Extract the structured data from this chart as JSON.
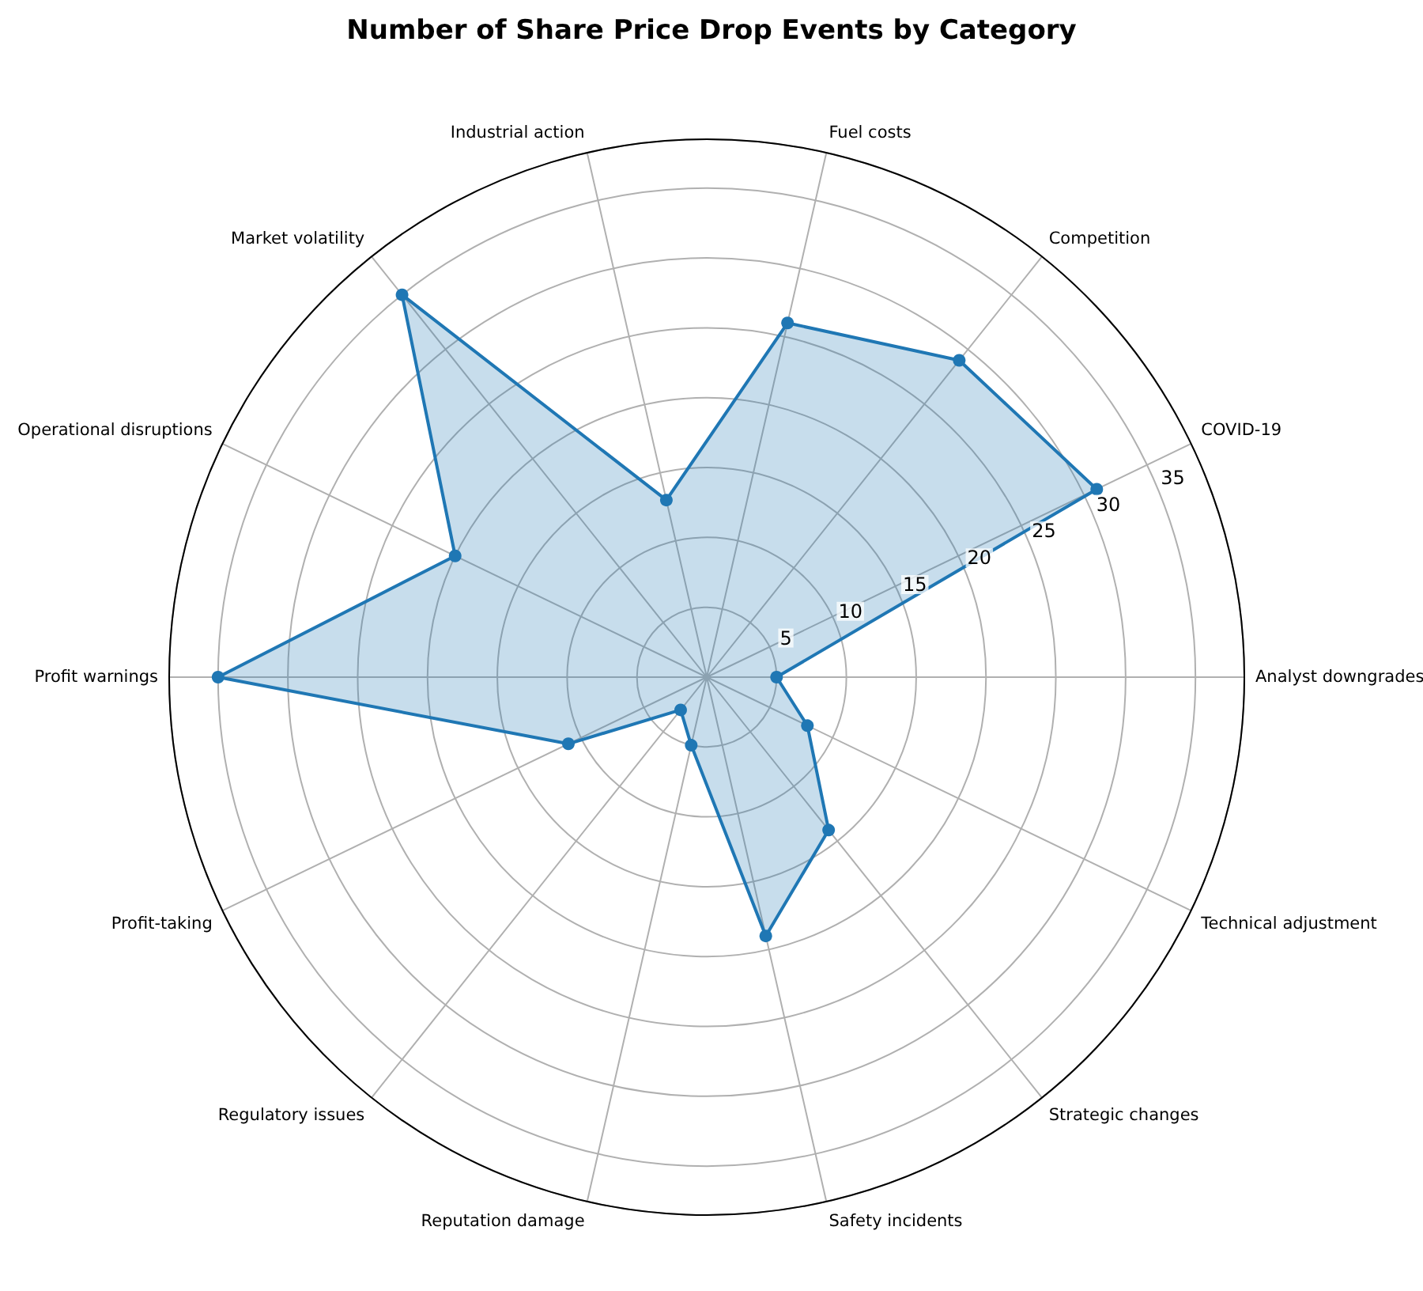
{
  "chart_data": {
    "type": "radar",
    "title": "Number of Share Price Drop Events by Category",
    "categories": [
      "Fuel costs",
      "Competition",
      "COVID-19",
      "Analyst downgrades",
      "Technical adjustment",
      "Strategic changes",
      "Safety incidents",
      "Reputation damage",
      "Regulatory issues",
      "Profit-taking",
      "Profit warnings",
      "Operational disruptions",
      "Market volatility",
      "Industrial action"
    ],
    "series": [
      {
        "color": "#1f77b4",
        "values": [
          26,
          29,
          31,
          5,
          8,
          14,
          19,
          5,
          3,
          11,
          35,
          20,
          35,
          13
        ]
      }
    ],
    "ylim": [
      0,
      38.5
    ],
    "yticks": [
      5,
      10,
      15,
      20,
      25,
      30,
      35
    ],
    "grid": true,
    "marker": "circle",
    "line_style": "solid"
  }
}
